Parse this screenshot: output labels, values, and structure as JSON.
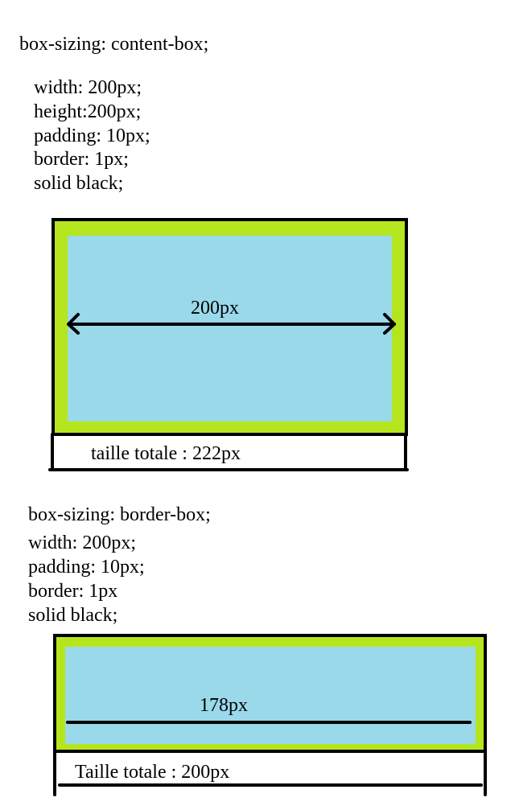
{
  "colors": {
    "padding_green": "#b5e61d",
    "content_blue": "#99d9ea",
    "ink": "#000000"
  },
  "content_box": {
    "heading": "box-sizing: content-box;",
    "props": [
      "width: 200px;",
      "height:200px;",
      "padding: 10px;",
      "border: 1px;",
      "solid black;"
    ],
    "inner_width_label": "200px",
    "total_label": "taille totale : 222px"
  },
  "border_box": {
    "heading": "box-sizing: border-box;",
    "props": [
      "width: 200px;",
      "padding: 10px;",
      "border: 1px",
      "solid black;"
    ],
    "inner_width_label": "178px",
    "total_label": "Taille totale : 200px"
  }
}
